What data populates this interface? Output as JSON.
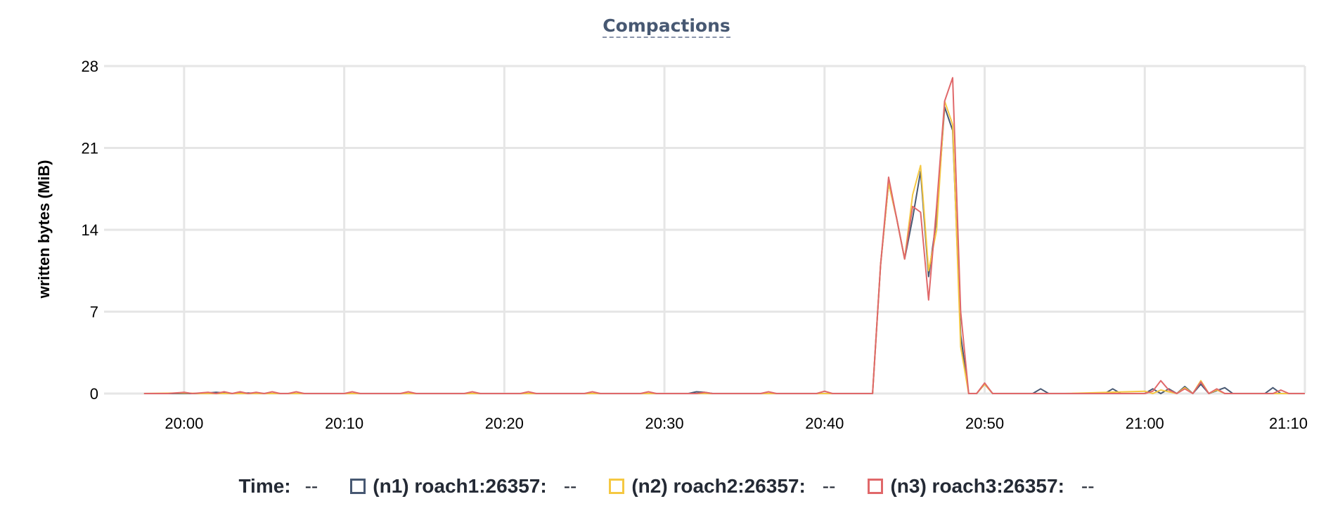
{
  "chart_data": {
    "type": "line",
    "title": "Compactions",
    "ylabel": "written bytes (MiB)",
    "xlabel": "",
    "ylim": [
      0,
      28
    ],
    "yticks": [
      "0",
      "7",
      "14",
      "21",
      "28"
    ],
    "xlim_minutes": [
      -5,
      70
    ],
    "xticks": [
      "20:00",
      "20:10",
      "20:20",
      "20:30",
      "20:40",
      "20:50",
      "21:00",
      "21:10"
    ],
    "grid": true,
    "legend": {
      "time_label": "Time:",
      "time_value": "--",
      "items": [
        {
          "name": "(n1) roach1:26357:",
          "value": "--",
          "color": "#475872"
        },
        {
          "name": "(n2) roach2:26357:",
          "value": "--",
          "color": "#f5c842"
        },
        {
          "name": "(n3) roach3:26357:",
          "value": "--",
          "color": "#e0686a"
        }
      ]
    },
    "series": [
      {
        "name": "(n1) roach1:26357:",
        "color": "#475872",
        "points": [
          [
            -2.5,
            0
          ],
          [
            0,
            0
          ],
          [
            1,
            0
          ],
          [
            2,
            0.1
          ],
          [
            3,
            0
          ],
          [
            4,
            0.05
          ],
          [
            5,
            0
          ],
          [
            6,
            0
          ],
          [
            7,
            0
          ],
          [
            10,
            0
          ],
          [
            14,
            0
          ],
          [
            18,
            0
          ],
          [
            21,
            0
          ],
          [
            25,
            0
          ],
          [
            29,
            0
          ],
          [
            31.5,
            0
          ],
          [
            32,
            0.15
          ],
          [
            32.5,
            0.1
          ],
          [
            33,
            0
          ],
          [
            36,
            0
          ],
          [
            39.5,
            0
          ],
          [
            40,
            0
          ],
          [
            43,
            0
          ],
          [
            43.5,
            11
          ],
          [
            44,
            18
          ],
          [
            44.5,
            15
          ],
          [
            45,
            11.5
          ],
          [
            45.5,
            15
          ],
          [
            46,
            19
          ],
          [
            46.5,
            10
          ],
          [
            47,
            15
          ],
          [
            47.5,
            24.5
          ],
          [
            48,
            22.5
          ],
          [
            48.5,
            5
          ],
          [
            49,
            0
          ],
          [
            49.5,
            0
          ],
          [
            50,
            0.8
          ],
          [
            50.5,
            0
          ],
          [
            53,
            0
          ],
          [
            53.5,
            0.4
          ],
          [
            54,
            0
          ],
          [
            57.5,
            0
          ],
          [
            58,
            0.4
          ],
          [
            58.5,
            0
          ],
          [
            60,
            0
          ],
          [
            60.5,
            0.4
          ],
          [
            61,
            0
          ],
          [
            61.5,
            0.4
          ],
          [
            62,
            0
          ],
          [
            62.5,
            0.6
          ],
          [
            63,
            0
          ],
          [
            63.5,
            0.8
          ],
          [
            64,
            0
          ],
          [
            65,
            0.5
          ],
          [
            65.5,
            0
          ],
          [
            67.5,
            0
          ],
          [
            68,
            0.5
          ],
          [
            68.5,
            0
          ],
          [
            70,
            0
          ]
        ]
      },
      {
        "name": "(n2) roach2:26357:",
        "color": "#f5c842",
        "points": [
          [
            -2.5,
            0
          ],
          [
            0,
            0.05
          ],
          [
            1,
            0
          ],
          [
            10,
            0
          ],
          [
            20,
            0
          ],
          [
            30,
            0
          ],
          [
            40,
            0
          ],
          [
            43,
            0
          ],
          [
            43.5,
            11
          ],
          [
            44,
            18
          ],
          [
            44.5,
            15
          ],
          [
            45,
            11.5
          ],
          [
            45.5,
            17
          ],
          [
            46,
            19.5
          ],
          [
            46.5,
            10.5
          ],
          [
            47,
            14
          ],
          [
            47.5,
            25
          ],
          [
            48,
            23
          ],
          [
            48.5,
            4
          ],
          [
            49,
            0
          ],
          [
            49.5,
            0
          ],
          [
            50,
            0.8
          ],
          [
            50.5,
            0
          ],
          [
            55,
            0
          ],
          [
            60,
            0.2
          ],
          [
            60.5,
            0
          ],
          [
            61,
            0.3
          ],
          [
            62,
            0
          ],
          [
            62.5,
            0.5
          ],
          [
            63,
            0
          ],
          [
            63.5,
            1.1
          ],
          [
            64,
            0
          ],
          [
            64.5,
            0.3
          ],
          [
            65,
            0
          ],
          [
            70,
            0
          ]
        ]
      },
      {
        "name": "(n3) roach3:26357:",
        "color": "#e0686a",
        "points": [
          [
            -2.5,
            0
          ],
          [
            -1,
            0
          ],
          [
            0,
            0.1
          ],
          [
            0.5,
            0
          ],
          [
            1.5,
            0.1
          ],
          [
            2,
            0
          ],
          [
            2.5,
            0.15
          ],
          [
            3,
            0
          ],
          [
            3.5,
            0.15
          ],
          [
            4,
            0
          ],
          [
            4.5,
            0.1
          ],
          [
            5,
            0
          ],
          [
            5.5,
            0.15
          ],
          [
            6,
            0
          ],
          [
            6.5,
            0
          ],
          [
            7,
            0.15
          ],
          [
            7.5,
            0
          ],
          [
            10,
            0
          ],
          [
            10.5,
            0.15
          ],
          [
            11,
            0
          ],
          [
            13.5,
            0
          ],
          [
            14,
            0.15
          ],
          [
            14.5,
            0
          ],
          [
            17.5,
            0
          ],
          [
            18,
            0.15
          ],
          [
            18.5,
            0
          ],
          [
            21,
            0
          ],
          [
            21.5,
            0.15
          ],
          [
            22,
            0
          ],
          [
            25,
            0
          ],
          [
            25.5,
            0.15
          ],
          [
            26,
            0
          ],
          [
            28.5,
            0
          ],
          [
            29,
            0.15
          ],
          [
            29.5,
            0
          ],
          [
            32,
            0
          ],
          [
            32.5,
            0.1
          ],
          [
            33,
            0
          ],
          [
            36,
            0
          ],
          [
            36.5,
            0.15
          ],
          [
            37,
            0
          ],
          [
            39.5,
            0
          ],
          [
            40,
            0.2
          ],
          [
            40.5,
            0
          ],
          [
            43,
            0
          ],
          [
            43.5,
            11
          ],
          [
            44,
            18.5
          ],
          [
            44.5,
            15
          ],
          [
            45,
            11.5
          ],
          [
            45.5,
            16
          ],
          [
            46,
            15.5
          ],
          [
            46.5,
            8
          ],
          [
            47,
            16
          ],
          [
            47.5,
            25
          ],
          [
            48,
            27
          ],
          [
            48.5,
            7
          ],
          [
            49,
            0
          ],
          [
            49.5,
            0
          ],
          [
            50,
            0.9
          ],
          [
            50.5,
            0
          ],
          [
            55,
            0
          ],
          [
            60,
            0
          ],
          [
            60.5,
            0.2
          ],
          [
            61,
            1.1
          ],
          [
            61.5,
            0.3
          ],
          [
            62,
            0
          ],
          [
            62.5,
            0.4
          ],
          [
            63,
            0
          ],
          [
            63.5,
            1
          ],
          [
            64,
            0
          ],
          [
            64.5,
            0.4
          ],
          [
            65,
            0
          ],
          [
            68,
            0
          ],
          [
            68.5,
            0.3
          ],
          [
            69,
            0
          ],
          [
            70,
            0
          ]
        ]
      }
    ]
  }
}
